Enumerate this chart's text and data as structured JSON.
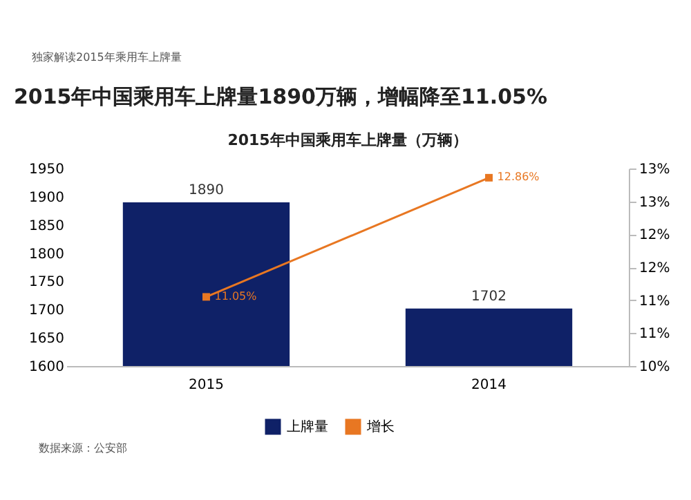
{
  "chart_data": {
    "type": "bar",
    "title": "2015年中国乘用车上牌量1890万辆，增幅降至11.05%",
    "subtitle": "2015年中国乘用车上牌量（万辆）",
    "categories": [
      "2015",
      "2014"
    ],
    "series": [
      {
        "name": "上牌量",
        "color": "#0f2167",
        "values": [
          1890,
          1702
        ]
      },
      {
        "name": "增长",
        "type": "line",
        "axis": "y2",
        "color": "#e87722",
        "marker": "square",
        "values": [
          11.05,
          12.86
        ],
        "value_labels": [
          "11.05%",
          "12.86%"
        ]
      }
    ],
    "ylim": [
      1600,
      1950
    ],
    "yticks": [
      1600,
      1650,
      1700,
      1750,
      1800,
      1850,
      1900,
      1950
    ],
    "y2lim": [
      10,
      13
    ],
    "y2ticks": [
      {
        "value": 10,
        "label": "10%"
      },
      {
        "value": 10.5,
        "label": "11%"
      },
      {
        "value": 11,
        "label": "11%"
      },
      {
        "value": 11.5,
        "label": "12%"
      },
      {
        "value": 12,
        "label": "12%"
      },
      {
        "value": 12.5,
        "label": "13%"
      },
      {
        "value": 13,
        "label": "13%"
      }
    ],
    "data_labels": true,
    "grid": false,
    "legend": "bottom",
    "annotations": [
      "独家解读2015年乘用车上牌量",
      "数据来源：公安部"
    ]
  }
}
